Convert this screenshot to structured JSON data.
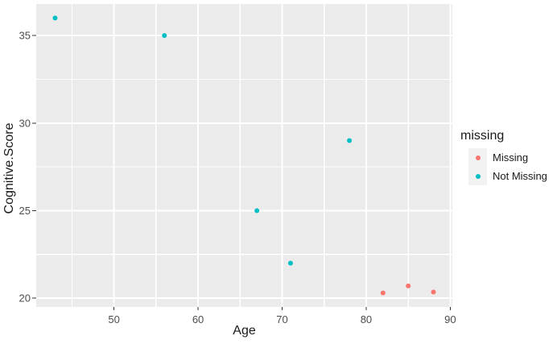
{
  "chart_data": {
    "type": "scatter",
    "title": "",
    "xlabel": "Age",
    "ylabel": "Cognitive.Score",
    "xlim": [
      40.75,
      90.25
    ],
    "ylim": [
      19.5,
      36.8
    ],
    "x_major_ticks": [
      50,
      60,
      70,
      80,
      90
    ],
    "x_minor_ticks": [
      45,
      55,
      65,
      75,
      85
    ],
    "y_major_ticks": [
      20,
      25,
      30,
      35
    ],
    "y_minor_ticks": [
      22.5,
      27.5,
      32.5
    ],
    "grid": "major+minor white on grey panel",
    "legend_position": "right",
    "legend": {
      "title": "missing",
      "entries": [
        {
          "label": "Missing",
          "color": "#F8766D"
        },
        {
          "label": "Not Missing",
          "color": "#00BFC4"
        }
      ]
    },
    "series": [
      {
        "name": "Missing",
        "color": "#F8766D",
        "points": [
          {
            "x": 82,
            "y": 20.3
          },
          {
            "x": 85,
            "y": 20.7
          },
          {
            "x": 88,
            "y": 20.35
          }
        ]
      },
      {
        "name": "Not Missing",
        "color": "#00BFC4",
        "points": [
          {
            "x": 43,
            "y": 36
          },
          {
            "x": 56,
            "y": 35
          },
          {
            "x": 67,
            "y": 25
          },
          {
            "x": 71,
            "y": 22
          },
          {
            "x": 78,
            "y": 29
          }
        ]
      }
    ],
    "style": {
      "panel_bg": "#EBEBEB",
      "grid_color": "#FFFFFF",
      "tick_color": "#333333",
      "tick_label_color": "#4D4D4D",
      "axis_title_color": "#1A1A1A",
      "legend_key_bg": "#F2F2F2"
    }
  }
}
